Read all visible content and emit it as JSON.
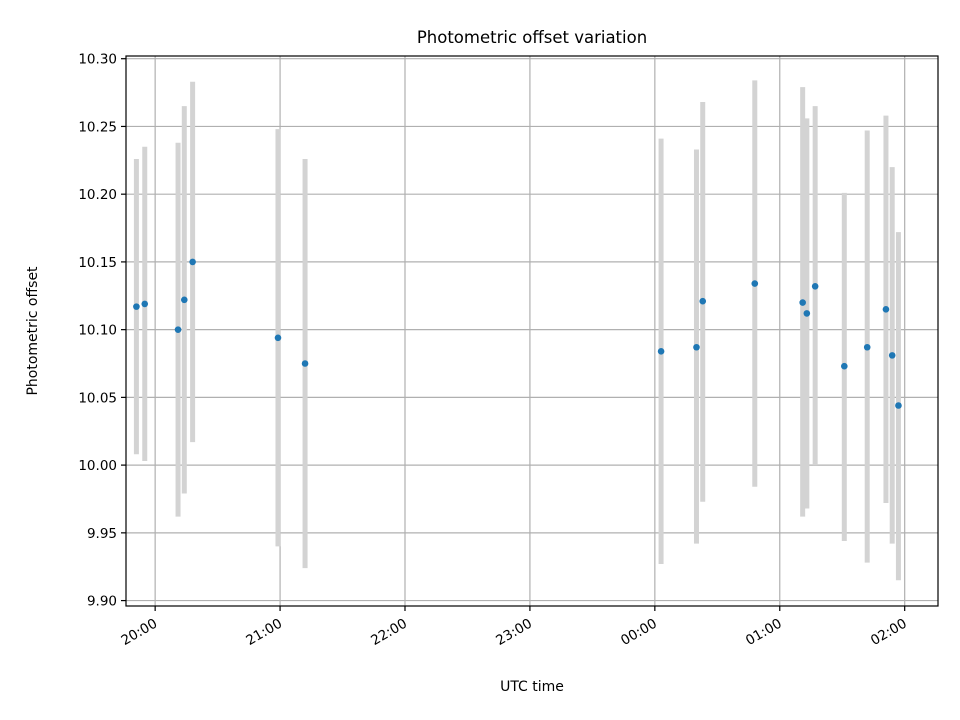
{
  "chart_data": {
    "type": "scatter",
    "title": "Photometric offset variation",
    "xlabel": "UTC time",
    "ylabel": "Photometric offset",
    "grid": true,
    "legend": "none",
    "ylim": [
      9.896,
      10.302
    ],
    "yticks": [
      "9.90",
      "9.95",
      "10.00",
      "10.05",
      "10.10",
      "10.15",
      "10.20",
      "10.25",
      "10.30"
    ],
    "xlim": [
      "19:46",
      "02:16"
    ],
    "xticks": [
      "20:00",
      "21:00",
      "22:00",
      "23:00",
      "00:00",
      "01:00",
      "02:00"
    ],
    "colors": {
      "points": "#1f77b4",
      "errorbars": "#d3d3d3",
      "grid": "#b0b0b0"
    },
    "points": [
      {
        "t": "19:51",
        "y": 10.117,
        "lo": 10.008,
        "hi": 10.226
      },
      {
        "t": "19:55",
        "y": 10.119,
        "lo": 10.003,
        "hi": 10.235
      },
      {
        "t": "20:11",
        "y": 10.1,
        "lo": 9.962,
        "hi": 10.238
      },
      {
        "t": "20:14",
        "y": 10.122,
        "lo": 9.979,
        "hi": 10.265
      },
      {
        "t": "20:18",
        "y": 10.15,
        "lo": 10.017,
        "hi": 10.283
      },
      {
        "t": "20:59",
        "y": 10.094,
        "lo": 9.94,
        "hi": 10.248
      },
      {
        "t": "21:12",
        "y": 10.075,
        "lo": 9.924,
        "hi": 10.226
      },
      {
        "t": "00:03",
        "y": 10.084,
        "lo": 9.927,
        "hi": 10.241
      },
      {
        "t": "00:20",
        "y": 10.087,
        "lo": 9.942,
        "hi": 10.233
      },
      {
        "t": "00:23",
        "y": 10.121,
        "lo": 9.973,
        "hi": 10.268
      },
      {
        "t": "00:48",
        "y": 10.134,
        "lo": 9.984,
        "hi": 10.284
      },
      {
        "t": "01:11",
        "y": 10.12,
        "lo": 9.962,
        "hi": 10.279
      },
      {
        "t": "01:13",
        "y": 10.112,
        "lo": 9.968,
        "hi": 10.256
      },
      {
        "t": "01:17",
        "y": 10.132,
        "lo": 10.0,
        "hi": 10.265
      },
      {
        "t": "01:31",
        "y": 10.073,
        "lo": 9.944,
        "hi": 10.201
      },
      {
        "t": "01:42",
        "y": 10.087,
        "lo": 9.928,
        "hi": 10.247
      },
      {
        "t": "01:51",
        "y": 10.115,
        "lo": 9.972,
        "hi": 10.258
      },
      {
        "t": "01:54",
        "y": 10.081,
        "lo": 9.942,
        "hi": 10.22
      },
      {
        "t": "01:57",
        "y": 10.044,
        "lo": 9.915,
        "hi": 10.172
      }
    ]
  }
}
